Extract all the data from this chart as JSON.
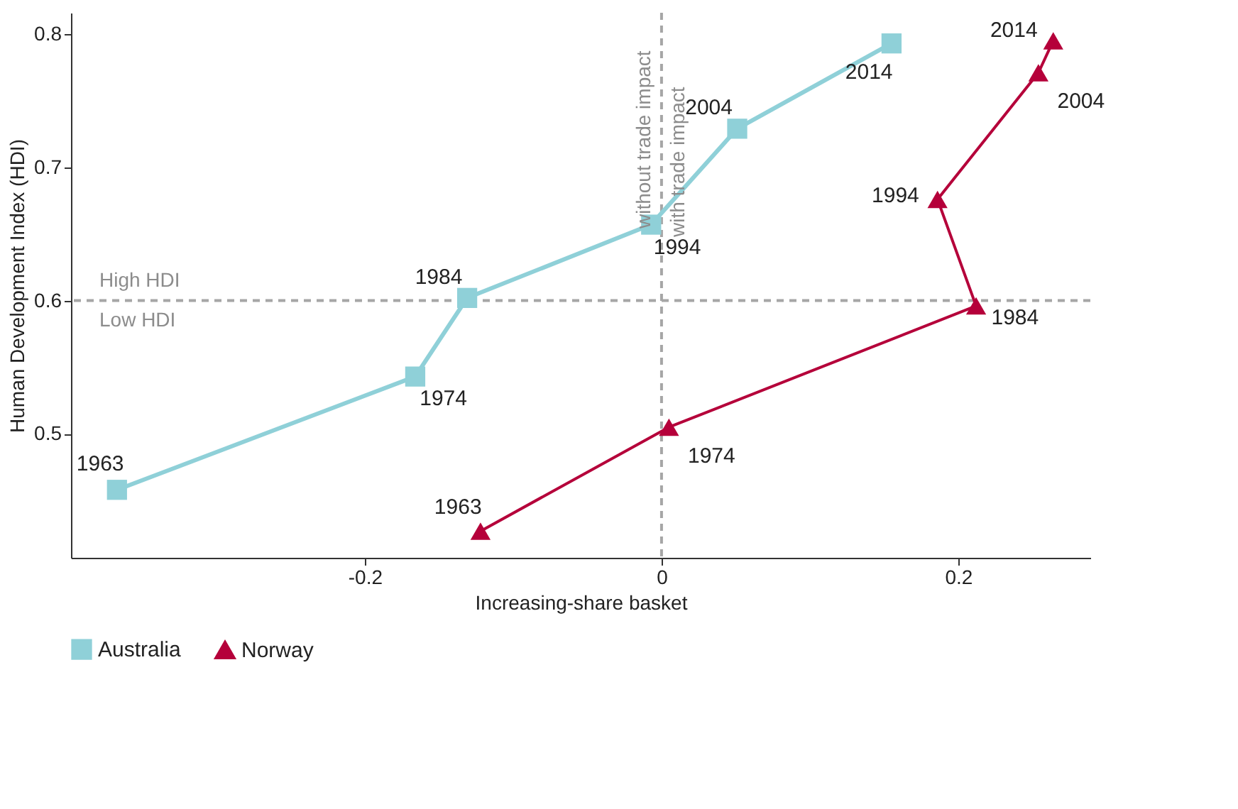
{
  "chart_data": {
    "type": "line",
    "xlabel": "Increasing-share basket",
    "ylabel": "Human Development Index (HDI)",
    "xlim": [
      -0.398,
      0.289
    ],
    "ylim": [
      0.407,
      0.816
    ],
    "xticks": [
      -0.2,
      0,
      0.2
    ],
    "yticks": [
      0.5,
      0.6,
      0.7,
      0.8
    ],
    "grid": false,
    "legend": "bottom",
    "series": [
      {
        "name": "Australia",
        "color": "#8fd0d8",
        "marker": "square",
        "x": [
          -0.367,
          -0.166,
          -0.131,
          -0.007,
          0.051,
          0.155
        ],
        "values": [
          0.458,
          0.543,
          0.602,
          0.657,
          0.729,
          0.793
        ]
      },
      {
        "name": "Norway",
        "color": "#b5003a",
        "marker": "triangle",
        "x": [
          -0.122,
          0.005,
          0.212,
          0.186,
          0.254,
          0.264
        ],
        "values": [
          0.427,
          0.505,
          0.596,
          0.676,
          0.771,
          0.795
        ]
      }
    ],
    "ref_lines": [
      {
        "axis": "y",
        "value": 0.6,
        "label": "High HDI",
        "color": "#a6a6a6",
        "line_style": "dashed"
      },
      {
        "axis": "x",
        "value": 0,
        "label": "with trade impact",
        "color": "#a6a6a6",
        "line_style": "dashed"
      }
    ],
    "annotations": [
      "Low HDI",
      "without trade impact",
      {
        "text": "1963",
        "x": -0.367,
        "y": 0.458
      },
      {
        "text": "1974",
        "x": -0.166,
        "y": 0.543
      },
      {
        "text": "1984",
        "x": -0.131,
        "y": 0.602
      },
      {
        "text": "1994",
        "x": -0.007,
        "y": 0.657
      },
      {
        "text": "2004",
        "x": 0.051,
        "y": 0.729
      },
      {
        "text": "2014",
        "x": 0.155,
        "y": 0.793
      },
      {
        "text": "1963",
        "x": -0.122,
        "y": 0.427
      },
      {
        "text": "1974",
        "x": 0.005,
        "y": 0.505
      },
      {
        "text": "1984",
        "x": 0.212,
        "y": 0.596
      },
      {
        "text": "1994",
        "x": 0.186,
        "y": 0.676
      },
      {
        "text": "2004",
        "x": 0.254,
        "y": 0.771
      },
      {
        "text": "2014",
        "x": 0.264,
        "y": 0.795
      }
    ]
  }
}
